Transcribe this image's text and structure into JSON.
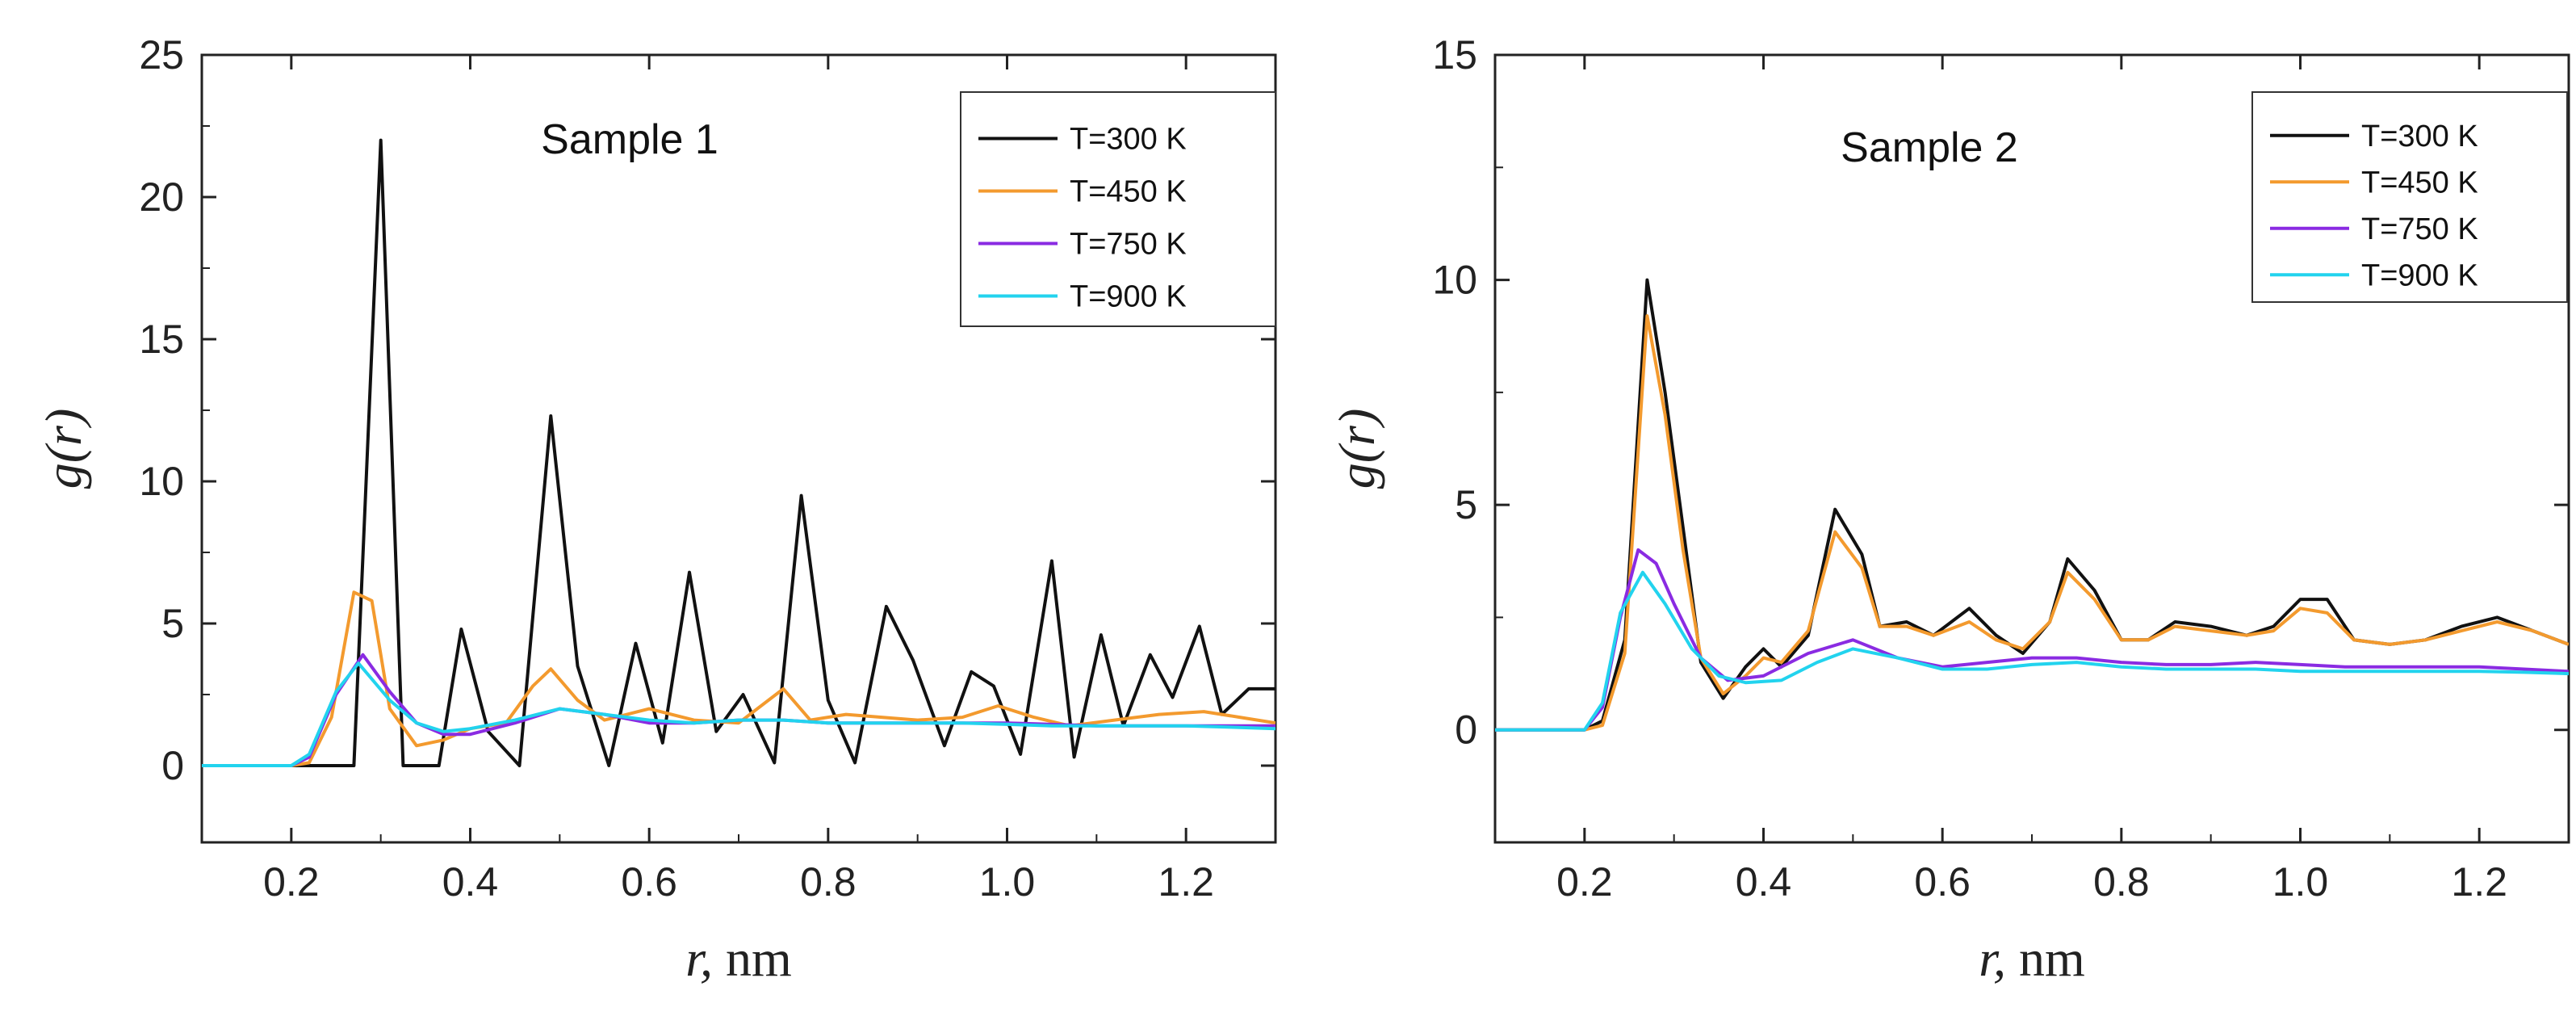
{
  "chart_data": [
    {
      "type": "line",
      "title": "Sample 1",
      "xlabel": "r, nm",
      "ylabel": "g(r)",
      "xlim": [
        0.1,
        1.3
      ],
      "ylim": [
        -2.7,
        25
      ],
      "xticks": [
        "0.2",
        "0.4",
        "0.6",
        "0.8",
        "1.0",
        "1.2"
      ],
      "yticks": [
        "0",
        "5",
        "10",
        "15",
        "20",
        "25"
      ],
      "legend": "top-right",
      "series": [
        {
          "name": "T=300 K",
          "color": "#111111",
          "x": [
            0.1,
            0.2,
            0.22,
            0.245,
            0.27,
            0.3,
            0.325,
            0.345,
            0.365,
            0.39,
            0.42,
            0.455,
            0.49,
            0.52,
            0.555,
            0.585,
            0.615,
            0.645,
            0.675,
            0.705,
            0.74,
            0.77,
            0.8,
            0.83,
            0.865,
            0.895,
            0.93,
            0.96,
            0.985,
            1.015,
            1.05,
            1.075,
            1.105,
            1.13,
            1.16,
            1.185,
            1.215,
            1.24,
            1.27,
            1.3
          ],
          "values": [
            0,
            0,
            0,
            0,
            0,
            22,
            0,
            0,
            0,
            4.8,
            1.2,
            0,
            12.3,
            3.5,
            0,
            4.3,
            0.8,
            6.8,
            1.2,
            2.5,
            0.1,
            9.5,
            2.3,
            0.1,
            5.6,
            3.7,
            0.7,
            3.3,
            2.8,
            0.4,
            7.2,
            0.3,
            4.6,
            1.4,
            3.9,
            2.4,
            4.9,
            1.8,
            2.7,
            2.7
          ]
        },
        {
          "name": "T=450 K",
          "color": "#F39A2E",
          "x": [
            0.1,
            0.2,
            0.22,
            0.245,
            0.27,
            0.29,
            0.31,
            0.34,
            0.37,
            0.4,
            0.44,
            0.47,
            0.49,
            0.52,
            0.55,
            0.6,
            0.65,
            0.7,
            0.75,
            0.78,
            0.82,
            0.86,
            0.9,
            0.95,
            0.99,
            1.03,
            1.07,
            1.12,
            1.17,
            1.22,
            1.26,
            1.3
          ],
          "values": [
            0,
            0,
            0.1,
            1.7,
            6.1,
            5.8,
            2.0,
            0.7,
            0.9,
            1.3,
            1.5,
            2.8,
            3.4,
            2.3,
            1.6,
            2.0,
            1.6,
            1.5,
            2.7,
            1.6,
            1.8,
            1.7,
            1.6,
            1.7,
            2.1,
            1.7,
            1.4,
            1.6,
            1.8,
            1.9,
            1.7,
            1.5
          ]
        },
        {
          "name": "T=750 K",
          "color": "#8A2BE2",
          "x": [
            0.1,
            0.2,
            0.22,
            0.25,
            0.28,
            0.31,
            0.34,
            0.37,
            0.4,
            0.45,
            0.5,
            0.55,
            0.6,
            0.65,
            0.7,
            0.75,
            0.8,
            0.85,
            0.9,
            0.95,
            1.0,
            1.05,
            1.1,
            1.15,
            1.2,
            1.25,
            1.3
          ],
          "values": [
            0,
            0,
            0.3,
            2.5,
            3.9,
            2.6,
            1.5,
            1.1,
            1.1,
            1.5,
            2.0,
            1.8,
            1.5,
            1.5,
            1.6,
            1.6,
            1.5,
            1.5,
            1.5,
            1.5,
            1.5,
            1.45,
            1.4,
            1.4,
            1.4,
            1.4,
            1.4
          ]
        },
        {
          "name": "T=900 K",
          "color": "#22D3EE",
          "x": [
            0.1,
            0.2,
            0.22,
            0.25,
            0.275,
            0.31,
            0.34,
            0.37,
            0.4,
            0.45,
            0.5,
            0.55,
            0.6,
            0.65,
            0.7,
            0.75,
            0.8,
            0.85,
            0.9,
            0.95,
            1.0,
            1.05,
            1.1,
            1.15,
            1.2,
            1.25,
            1.3
          ],
          "values": [
            0,
            0,
            0.4,
            2.6,
            3.6,
            2.3,
            1.5,
            1.2,
            1.3,
            1.6,
            2.0,
            1.8,
            1.6,
            1.5,
            1.6,
            1.6,
            1.5,
            1.5,
            1.5,
            1.5,
            1.45,
            1.4,
            1.4,
            1.4,
            1.4,
            1.35,
            1.3
          ]
        }
      ]
    },
    {
      "type": "line",
      "title": "Sample 2",
      "xlabel": "r, nm",
      "ylabel": "g(r)",
      "xlim": [
        0.1,
        1.3
      ],
      "ylim": [
        -2.5,
        15
      ],
      "xticks": [
        "0.2",
        "0.4",
        "0.6",
        "0.8",
        "1.0",
        "1.2"
      ],
      "yticks": [
        "0",
        "5",
        "10",
        "15"
      ],
      "legend": "top-right",
      "series": [
        {
          "name": "T=300 K",
          "color": "#111111",
          "x": [
            0.1,
            0.2,
            0.22,
            0.245,
            0.27,
            0.29,
            0.31,
            0.33,
            0.355,
            0.38,
            0.4,
            0.42,
            0.45,
            0.48,
            0.51,
            0.53,
            0.56,
            0.59,
            0.63,
            0.66,
            0.69,
            0.72,
            0.74,
            0.77,
            0.8,
            0.83,
            0.86,
            0.9,
            0.94,
            0.97,
            1.0,
            1.03,
            1.06,
            1.1,
            1.14,
            1.18,
            1.22,
            1.26,
            1.3
          ],
          "values": [
            0,
            0,
            0.2,
            2.0,
            10.0,
            7.5,
            4.5,
            1.5,
            0.7,
            1.4,
            1.8,
            1.4,
            2.1,
            4.9,
            3.9,
            2.3,
            2.4,
            2.1,
            2.7,
            2.1,
            1.7,
            2.4,
            3.8,
            3.1,
            2.0,
            2.0,
            2.4,
            2.3,
            2.1,
            2.3,
            2.9,
            2.9,
            2.0,
            1.9,
            2.0,
            2.3,
            2.5,
            2.2,
            1.9
          ]
        },
        {
          "name": "T=450 K",
          "color": "#F39A2E",
          "x": [
            0.1,
            0.2,
            0.22,
            0.245,
            0.27,
            0.29,
            0.31,
            0.33,
            0.355,
            0.38,
            0.4,
            0.42,
            0.45,
            0.48,
            0.51,
            0.53,
            0.56,
            0.59,
            0.63,
            0.66,
            0.69,
            0.72,
            0.74,
            0.77,
            0.8,
            0.83,
            0.86,
            0.9,
            0.94,
            0.97,
            1.0,
            1.03,
            1.06,
            1.1,
            1.14,
            1.18,
            1.22,
            1.26,
            1.3
          ],
          "values": [
            0,
            0,
            0.1,
            1.7,
            9.2,
            7.0,
            4.0,
            1.6,
            0.8,
            1.2,
            1.6,
            1.5,
            2.2,
            4.4,
            3.6,
            2.3,
            2.3,
            2.1,
            2.4,
            2.0,
            1.8,
            2.4,
            3.5,
            2.9,
            2.0,
            2.0,
            2.3,
            2.2,
            2.1,
            2.2,
            2.7,
            2.6,
            2.0,
            1.9,
            2.0,
            2.2,
            2.4,
            2.2,
            1.9
          ]
        },
        {
          "name": "T=750 K",
          "color": "#8A2BE2",
          "x": [
            0.1,
            0.2,
            0.22,
            0.24,
            0.26,
            0.28,
            0.3,
            0.33,
            0.36,
            0.4,
            0.45,
            0.5,
            0.55,
            0.6,
            0.65,
            0.7,
            0.75,
            0.8,
            0.85,
            0.9,
            0.95,
            1.0,
            1.05,
            1.1,
            1.15,
            1.2,
            1.25,
            1.3
          ],
          "values": [
            0,
            0,
            0.5,
            2.5,
            4.0,
            3.7,
            2.8,
            1.6,
            1.1,
            1.2,
            1.7,
            2.0,
            1.6,
            1.4,
            1.5,
            1.6,
            1.6,
            1.5,
            1.45,
            1.45,
            1.5,
            1.45,
            1.4,
            1.4,
            1.4,
            1.4,
            1.35,
            1.3
          ]
        },
        {
          "name": "T=900 K",
          "color": "#22D3EE",
          "x": [
            0.1,
            0.2,
            0.22,
            0.24,
            0.265,
            0.29,
            0.32,
            0.35,
            0.38,
            0.42,
            0.46,
            0.5,
            0.55,
            0.6,
            0.65,
            0.7,
            0.75,
            0.8,
            0.85,
            0.9,
            0.95,
            1.0,
            1.05,
            1.1,
            1.15,
            1.2,
            1.25,
            1.3
          ],
          "values": [
            0,
            0,
            0.6,
            2.6,
            3.5,
            2.8,
            1.8,
            1.2,
            1.05,
            1.1,
            1.5,
            1.8,
            1.6,
            1.35,
            1.35,
            1.45,
            1.5,
            1.4,
            1.35,
            1.35,
            1.35,
            1.3,
            1.3,
            1.3,
            1.3,
            1.3,
            1.28,
            1.25
          ]
        }
      ]
    }
  ]
}
